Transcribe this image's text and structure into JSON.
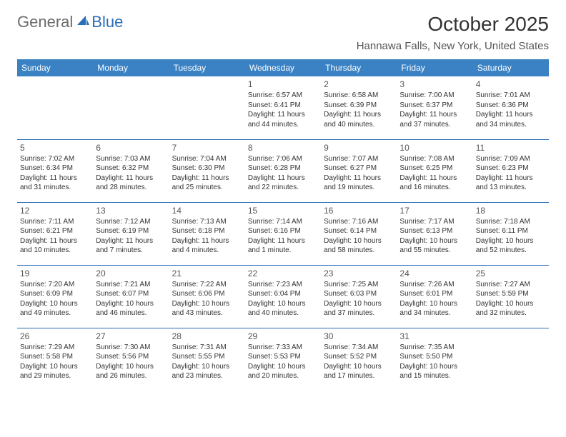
{
  "logo": {
    "part1": "General",
    "part2": "Blue"
  },
  "title": "October 2025",
  "location": "Hannawa Falls, New York, United States",
  "colors": {
    "header_bg": "#3a82c4",
    "header_text": "#ffffff",
    "border": "#2a6db8",
    "body_text": "#333333",
    "muted_text": "#555555",
    "logo_gray": "#6b6b6b",
    "logo_blue": "#2a6db8",
    "background": "#ffffff"
  },
  "day_headers": [
    "Sunday",
    "Monday",
    "Tuesday",
    "Wednesday",
    "Thursday",
    "Friday",
    "Saturday"
  ],
  "weeks": [
    [
      null,
      null,
      null,
      {
        "n": "1",
        "sunrise": "6:57 AM",
        "sunset": "6:41 PM",
        "daylight": "11 hours and 44 minutes."
      },
      {
        "n": "2",
        "sunrise": "6:58 AM",
        "sunset": "6:39 PM",
        "daylight": "11 hours and 40 minutes."
      },
      {
        "n": "3",
        "sunrise": "7:00 AM",
        "sunset": "6:37 PM",
        "daylight": "11 hours and 37 minutes."
      },
      {
        "n": "4",
        "sunrise": "7:01 AM",
        "sunset": "6:36 PM",
        "daylight": "11 hours and 34 minutes."
      }
    ],
    [
      {
        "n": "5",
        "sunrise": "7:02 AM",
        "sunset": "6:34 PM",
        "daylight": "11 hours and 31 minutes."
      },
      {
        "n": "6",
        "sunrise": "7:03 AM",
        "sunset": "6:32 PM",
        "daylight": "11 hours and 28 minutes."
      },
      {
        "n": "7",
        "sunrise": "7:04 AM",
        "sunset": "6:30 PM",
        "daylight": "11 hours and 25 minutes."
      },
      {
        "n": "8",
        "sunrise": "7:06 AM",
        "sunset": "6:28 PM",
        "daylight": "11 hours and 22 minutes."
      },
      {
        "n": "9",
        "sunrise": "7:07 AM",
        "sunset": "6:27 PM",
        "daylight": "11 hours and 19 minutes."
      },
      {
        "n": "10",
        "sunrise": "7:08 AM",
        "sunset": "6:25 PM",
        "daylight": "11 hours and 16 minutes."
      },
      {
        "n": "11",
        "sunrise": "7:09 AM",
        "sunset": "6:23 PM",
        "daylight": "11 hours and 13 minutes."
      }
    ],
    [
      {
        "n": "12",
        "sunrise": "7:11 AM",
        "sunset": "6:21 PM",
        "daylight": "11 hours and 10 minutes."
      },
      {
        "n": "13",
        "sunrise": "7:12 AM",
        "sunset": "6:19 PM",
        "daylight": "11 hours and 7 minutes."
      },
      {
        "n": "14",
        "sunrise": "7:13 AM",
        "sunset": "6:18 PM",
        "daylight": "11 hours and 4 minutes."
      },
      {
        "n": "15",
        "sunrise": "7:14 AM",
        "sunset": "6:16 PM",
        "daylight": "11 hours and 1 minute."
      },
      {
        "n": "16",
        "sunrise": "7:16 AM",
        "sunset": "6:14 PM",
        "daylight": "10 hours and 58 minutes."
      },
      {
        "n": "17",
        "sunrise": "7:17 AM",
        "sunset": "6:13 PM",
        "daylight": "10 hours and 55 minutes."
      },
      {
        "n": "18",
        "sunrise": "7:18 AM",
        "sunset": "6:11 PM",
        "daylight": "10 hours and 52 minutes."
      }
    ],
    [
      {
        "n": "19",
        "sunrise": "7:20 AM",
        "sunset": "6:09 PM",
        "daylight": "10 hours and 49 minutes."
      },
      {
        "n": "20",
        "sunrise": "7:21 AM",
        "sunset": "6:07 PM",
        "daylight": "10 hours and 46 minutes."
      },
      {
        "n": "21",
        "sunrise": "7:22 AM",
        "sunset": "6:06 PM",
        "daylight": "10 hours and 43 minutes."
      },
      {
        "n": "22",
        "sunrise": "7:23 AM",
        "sunset": "6:04 PM",
        "daylight": "10 hours and 40 minutes."
      },
      {
        "n": "23",
        "sunrise": "7:25 AM",
        "sunset": "6:03 PM",
        "daylight": "10 hours and 37 minutes."
      },
      {
        "n": "24",
        "sunrise": "7:26 AM",
        "sunset": "6:01 PM",
        "daylight": "10 hours and 34 minutes."
      },
      {
        "n": "25",
        "sunrise": "7:27 AM",
        "sunset": "5:59 PM",
        "daylight": "10 hours and 32 minutes."
      }
    ],
    [
      {
        "n": "26",
        "sunrise": "7:29 AM",
        "sunset": "5:58 PM",
        "daylight": "10 hours and 29 minutes."
      },
      {
        "n": "27",
        "sunrise": "7:30 AM",
        "sunset": "5:56 PM",
        "daylight": "10 hours and 26 minutes."
      },
      {
        "n": "28",
        "sunrise": "7:31 AM",
        "sunset": "5:55 PM",
        "daylight": "10 hours and 23 minutes."
      },
      {
        "n": "29",
        "sunrise": "7:33 AM",
        "sunset": "5:53 PM",
        "daylight": "10 hours and 20 minutes."
      },
      {
        "n": "30",
        "sunrise": "7:34 AM",
        "sunset": "5:52 PM",
        "daylight": "10 hours and 17 minutes."
      },
      {
        "n": "31",
        "sunrise": "7:35 AM",
        "sunset": "5:50 PM",
        "daylight": "10 hours and 15 minutes."
      },
      null
    ]
  ],
  "labels": {
    "sunrise": "Sunrise:",
    "sunset": "Sunset:",
    "daylight": "Daylight:"
  }
}
